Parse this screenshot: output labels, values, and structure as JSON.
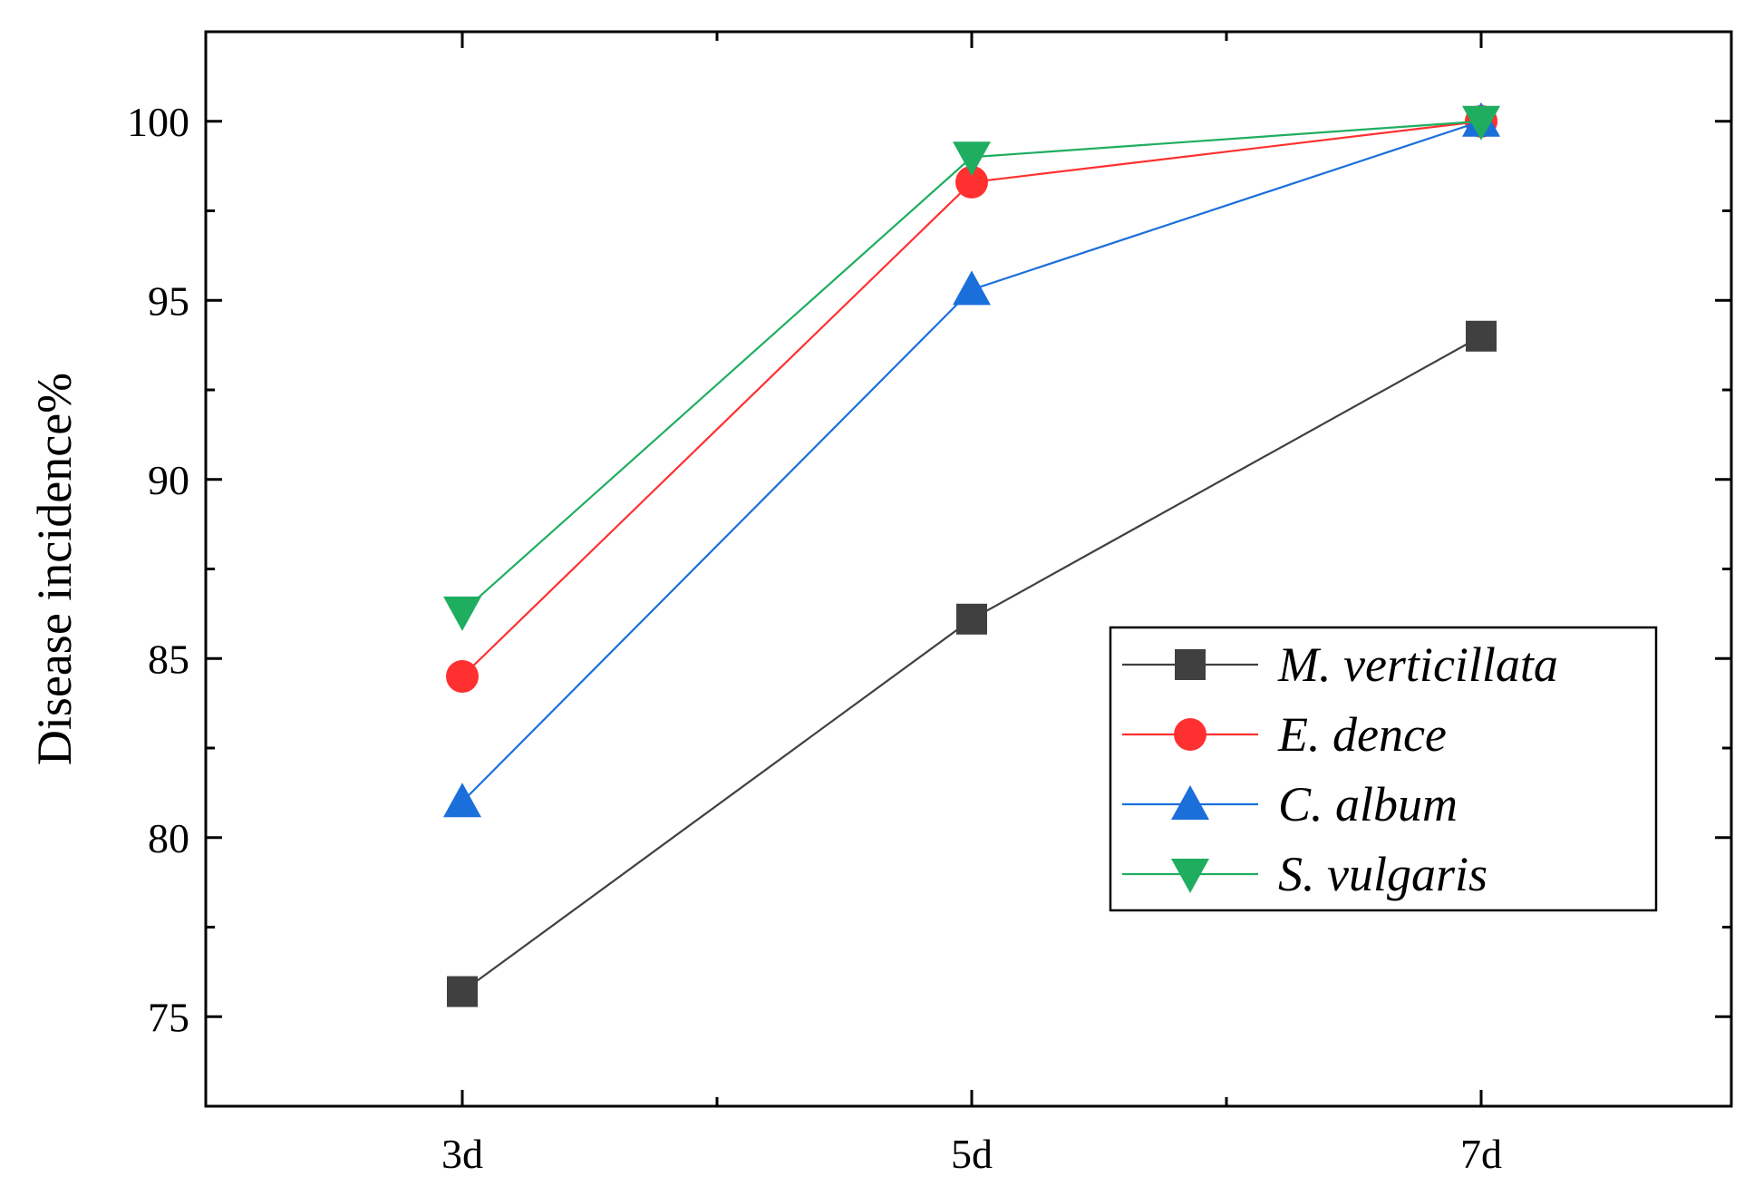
{
  "chart_data": {
    "type": "line",
    "categories": [
      "3d",
      "5d",
      "7d"
    ],
    "ylabel": "Disease incidence%",
    "xlabel": "",
    "ylim": [
      72.5,
      102.5
    ],
    "yticks": [
      75,
      80,
      85,
      90,
      95,
      100
    ],
    "grid": false,
    "legend_position": "bottom-right",
    "series": [
      {
        "name": "M. verticillata",
        "values": [
          75.7,
          86.1,
          94.0
        ],
        "color": "#404040",
        "marker": "square"
      },
      {
        "name": "E. dence",
        "values": [
          84.5,
          98.3,
          100.0
        ],
        "color": "#ff3030",
        "marker": "circle"
      },
      {
        "name": "C. album",
        "values": [
          81.0,
          95.3,
          100.0
        ],
        "color": "#1a6fdb",
        "marker": "triangle-up"
      },
      {
        "name": "S. vulgaris",
        "values": [
          86.3,
          99.0,
          100.0
        ],
        "color": "#1fae60",
        "marker": "triangle-down"
      }
    ]
  }
}
